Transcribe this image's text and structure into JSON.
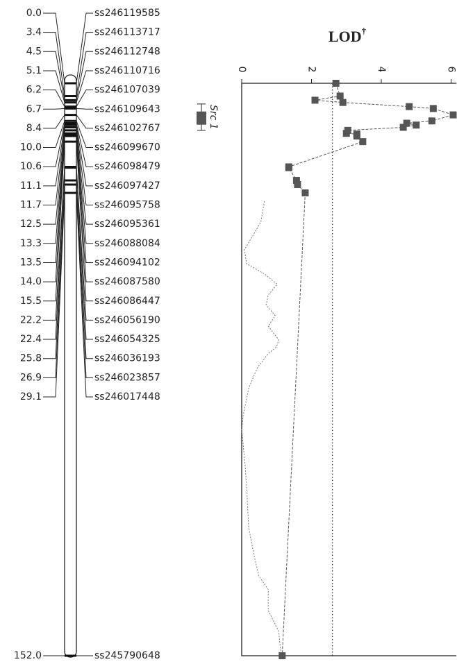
{
  "linkage_map": {
    "markers": [
      {
        "position": {
          "value": 0,
          "label": "0.0"
        },
        "name": "ss246119585"
      },
      {
        "position": 3.4,
        "name": "ss246113717"
      },
      {
        "position": 4.5,
        "name": "ss246112748"
      },
      {
        "position": 5.1,
        "name": "ss246110716"
      },
      {
        "position": 6.2,
        "name": "ss246107039"
      },
      {
        "position": 6.7,
        "name": "ss246109643"
      },
      {
        "position": 8.4,
        "name": "ss246102767"
      },
      {
        "position": {
          "value": 10,
          "label": "10.0"
        },
        "name": "ss246099670"
      },
      {
        "position": 10.6,
        "name": "ss246098479"
      },
      {
        "position": 11.1,
        "name": "ss246097427"
      },
      {
        "position": 11.7,
        "name": "ss246095758"
      },
      {
        "position": 12.5,
        "name": "ss246095361"
      },
      {
        "position": 13.3,
        "name": "ss246088084"
      },
      {
        "position": 13.5,
        "name": "ss246094102"
      },
      {
        "position": {
          "value": 14,
          "label": "14.0"
        },
        "name": "ss246087580"
      },
      {
        "position": 15.5,
        "name": "ss246086447"
      },
      {
        "position": 22.2,
        "name": "ss246056190"
      },
      {
        "position": 22.4,
        "name": "ss246054325"
      },
      {
        "position": 25.8,
        "name": "ss246036193"
      },
      {
        "position": 26.9,
        "name": "ss246023857"
      },
      {
        "position": 29.1,
        "name": "ss246017448"
      },
      {
        "position": {
          "value": 152,
          "label": "152.0"
        },
        "name": "ss245790648"
      }
    ],
    "length": 152,
    "qtl": {
      "name": "Src 1",
      "interval": [
        5.5,
        12.5
      ],
      "core": [
        7.5,
        11.0
      ]
    }
  },
  "chart_data": {
    "type": "line",
    "title": "LOD",
    "title_note": "†",
    "xlim": [
      0,
      6.15
    ],
    "xticks": [
      0,
      2,
      4,
      6
    ],
    "threshold": 2.6,
    "series": [
      {
        "color": "#555555",
        "values": [
          2.7,
          2.82,
          2.1,
          2.9,
          4.8,
          5.49,
          6.06,
          5.45,
          4.73,
          5.0,
          4.63,
          3.04,
          3.0,
          3.3,
          3.3,
          3.47,
          1.35,
          1.35,
          1.57,
          1.6,
          1.82,
          1.16
        ]
      },
      {
        "color": "#777777",
        "x": [
          31.3,
          36.8,
          44.2,
          47.9,
          50.6,
          53.4,
          56.2,
          58.9,
          61.7,
          64.5,
          68.1,
          70.0,
          71.8,
          75.5,
          81.0,
          88.4,
          92.1,
          99.4,
          106.8,
          117.9,
          125.2,
          130.8,
          134.4,
          140.0,
          145.5,
          151.0
        ],
        "values": [
          0.65,
          0.55,
          0.08,
          0.14,
          0.65,
          1.02,
          0.76,
          0.7,
          0.96,
          0.76,
          1.06,
          1.0,
          0.76,
          0.45,
          0.2,
          0.04,
          0,
          0.08,
          0.14,
          0.2,
          0.35,
          0.49,
          0.76,
          0.76,
          1.06,
          1.12
        ]
      }
    ]
  }
}
